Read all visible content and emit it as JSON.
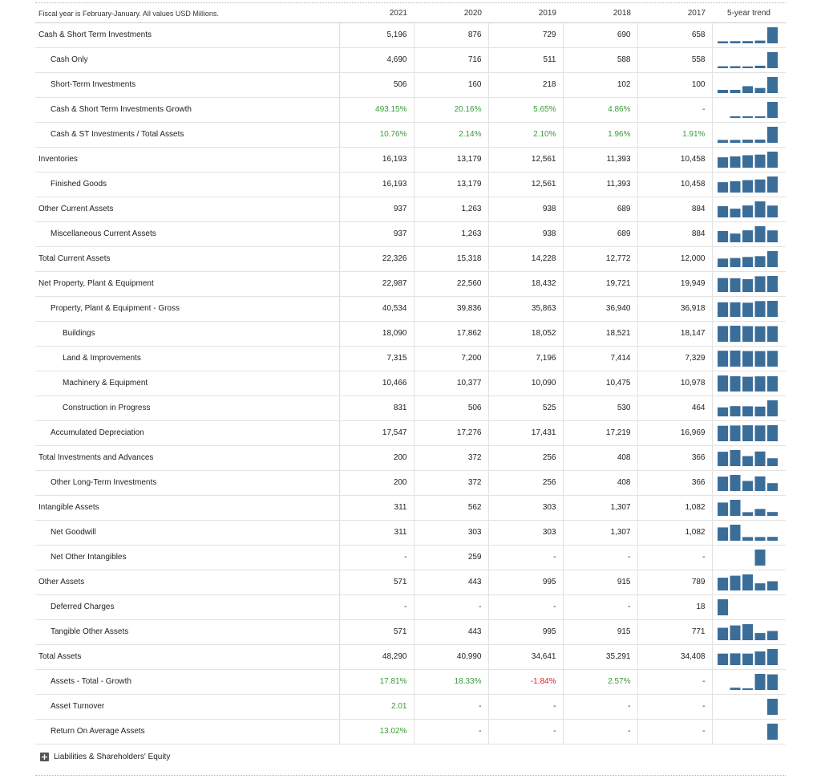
{
  "header": {
    "note": "Fiscal year is February-January. All values USD Millions.",
    "years": [
      "2021",
      "2020",
      "2019",
      "2018",
      "2017"
    ],
    "trend_label": "5-year trend"
  },
  "rows": [
    {
      "label": "Cash & Short Term Investments",
      "level": 0,
      "values": [
        "5,196",
        "876",
        "729",
        "690",
        "658"
      ]
    },
    {
      "label": "Cash Only",
      "level": 1,
      "values": [
        "4,690",
        "716",
        "511",
        "588",
        "558"
      ]
    },
    {
      "label": "Short-Term Investments",
      "level": 1,
      "values": [
        "506",
        "160",
        "218",
        "102",
        "100"
      ]
    },
    {
      "label": "Cash & Short Term Investments Growth",
      "level": 1,
      "values": [
        "493.15%",
        "20.16%",
        "5.65%",
        "4.86%",
        "-"
      ],
      "colors": [
        "green",
        "green",
        "green",
        "green",
        ""
      ]
    },
    {
      "label": "Cash & ST Investments / Total Assets",
      "level": 1,
      "values": [
        "10.76%",
        "2.14%",
        "2.10%",
        "1.96%",
        "1.91%"
      ],
      "colors": [
        "green",
        "green",
        "green",
        "green",
        "green"
      ]
    },
    {
      "label": "Inventories",
      "level": 0,
      "values": [
        "16,193",
        "13,179",
        "12,561",
        "11,393",
        "10,458"
      ]
    },
    {
      "label": "Finished Goods",
      "level": 1,
      "values": [
        "16,193",
        "13,179",
        "12,561",
        "11,393",
        "10,458"
      ]
    },
    {
      "label": "Other Current Assets",
      "level": 0,
      "values": [
        "937",
        "1,263",
        "938",
        "689",
        "884"
      ]
    },
    {
      "label": "Miscellaneous Current Assets",
      "level": 1,
      "values": [
        "937",
        "1,263",
        "938",
        "689",
        "884"
      ]
    },
    {
      "label": "Total Current Assets",
      "level": 0,
      "values": [
        "22,326",
        "15,318",
        "14,228",
        "12,772",
        "12,000"
      ]
    },
    {
      "label": "Net Property, Plant & Equipment",
      "level": 0,
      "values": [
        "22,987",
        "22,560",
        "18,432",
        "19,721",
        "19,949"
      ]
    },
    {
      "label": "Property, Plant & Equipment - Gross",
      "level": 1,
      "values": [
        "40,534",
        "39,836",
        "35,863",
        "36,940",
        "36,918"
      ]
    },
    {
      "label": "Buildings",
      "level": 2,
      "values": [
        "18,090",
        "17,862",
        "18,052",
        "18,521",
        "18,147"
      ]
    },
    {
      "label": "Land & Improvements",
      "level": 2,
      "values": [
        "7,315",
        "7,200",
        "7,196",
        "7,414",
        "7,329"
      ]
    },
    {
      "label": "Machinery & Equipment",
      "level": 2,
      "values": [
        "10,466",
        "10,377",
        "10,090",
        "10,475",
        "10,978"
      ]
    },
    {
      "label": "Construction in Progress",
      "level": 2,
      "values": [
        "831",
        "506",
        "525",
        "530",
        "464"
      ]
    },
    {
      "label": "Accumulated Depreciation",
      "level": 1,
      "values": [
        "17,547",
        "17,276",
        "17,431",
        "17,219",
        "16,969"
      ]
    },
    {
      "label": "Total Investments and Advances",
      "level": 0,
      "values": [
        "200",
        "372",
        "256",
        "408",
        "366"
      ]
    },
    {
      "label": "Other Long-Term Investments",
      "level": 1,
      "values": [
        "200",
        "372",
        "256",
        "408",
        "366"
      ]
    },
    {
      "label": "Intangible Assets",
      "level": 0,
      "values": [
        "311",
        "562",
        "303",
        "1,307",
        "1,082"
      ]
    },
    {
      "label": "Net Goodwill",
      "level": 1,
      "values": [
        "311",
        "303",
        "303",
        "1,307",
        "1,082"
      ]
    },
    {
      "label": "Net Other Intangibles",
      "level": 1,
      "values": [
        "-",
        "259",
        "-",
        "-",
        "-"
      ]
    },
    {
      "label": "Other Assets",
      "level": 0,
      "values": [
        "571",
        "443",
        "995",
        "915",
        "789"
      ]
    },
    {
      "label": "Deferred Charges",
      "level": 1,
      "values": [
        "-",
        "-",
        "-",
        "-",
        "18"
      ]
    },
    {
      "label": "Tangible Other Assets",
      "level": 1,
      "values": [
        "571",
        "443",
        "995",
        "915",
        "771"
      ]
    },
    {
      "label": "Total Assets",
      "level": 0,
      "values": [
        "48,290",
        "40,990",
        "34,641",
        "35,291",
        "34,408"
      ]
    },
    {
      "label": "Assets - Total - Growth",
      "level": 1,
      "values": [
        "17.81%",
        "18.33%",
        "-1.84%",
        "2.57%",
        "-"
      ],
      "colors": [
        "green",
        "green",
        "red",
        "green",
        ""
      ]
    },
    {
      "label": "Asset Turnover",
      "level": 1,
      "values": [
        "2.01",
        "-",
        "-",
        "-",
        "-"
      ],
      "colors": [
        "green",
        "",
        "",
        "",
        ""
      ]
    },
    {
      "label": "Return On Average Assets",
      "level": 1,
      "values": [
        "13.02%",
        "-",
        "-",
        "-",
        "-"
      ],
      "colors": [
        "green",
        "",
        "",
        "",
        ""
      ]
    }
  ],
  "footer": {
    "expand_icon": "plus-icon",
    "label": "Liabilities & Shareholders' Equity"
  },
  "colors": {
    "bar": "#3b6d99",
    "positive": "#3a9a3a",
    "negative": "#dd2222"
  }
}
